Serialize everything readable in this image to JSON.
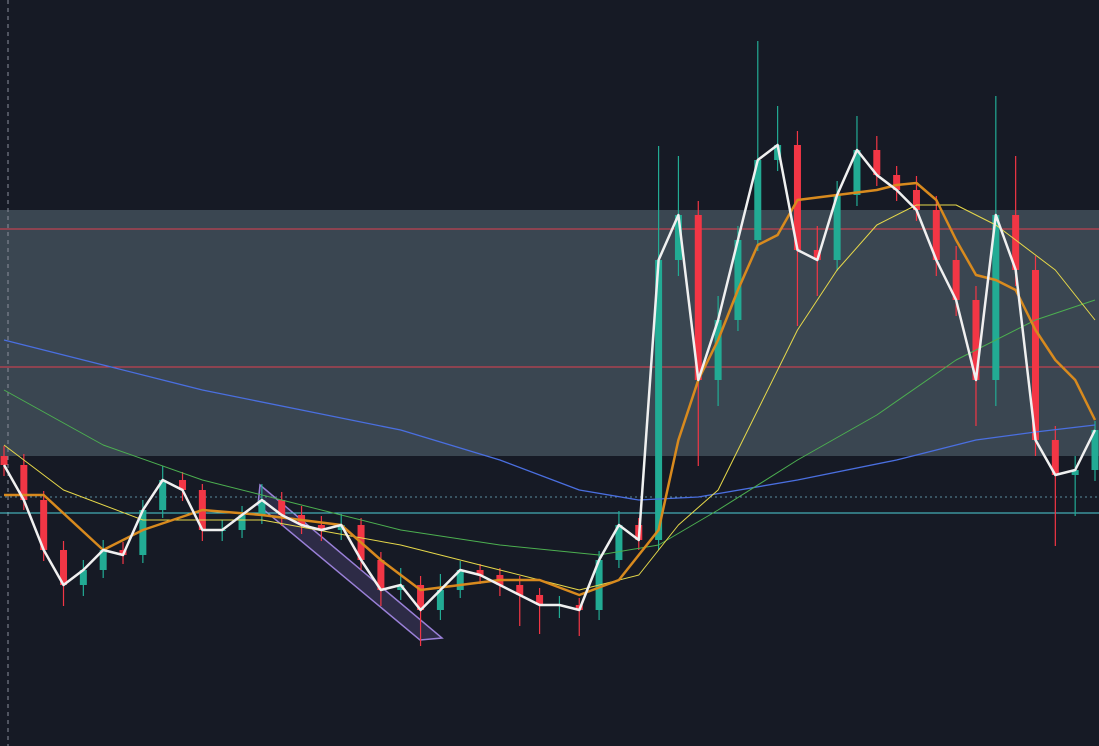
{
  "chart_data": {
    "type": "candlestick",
    "xlim": [
      0,
      55
    ],
    "ylim": [
      0,
      746
    ],
    "up_color": "#22ab94",
    "down_color": "#f23645",
    "open": [
      290,
      281,
      246,
      196,
      161,
      176,
      196,
      191,
      236,
      266,
      256,
      216,
      216,
      231,
      246,
      231,
      221,
      216,
      221,
      186,
      156,
      161,
      136,
      156,
      176,
      171,
      161,
      151,
      141,
      141,
      136,
      186,
      221,
      206,
      486,
      531,
      366,
      426,
      506,
      586,
      601,
      496,
      486,
      551,
      596,
      571,
      556,
      536,
      486,
      446,
      366,
      531,
      476,
      306,
      271,
      276
    ],
    "high": [
      300,
      292,
      255,
      205,
      186,
      206,
      204,
      246,
      280,
      274,
      262,
      226,
      240,
      262,
      254,
      240,
      230,
      232,
      228,
      194,
      178,
      170,
      172,
      185,
      182,
      178,
      170,
      158,
      150,
      148,
      195,
      235,
      228,
      600,
      590,
      545,
      450,
      520,
      705,
      640,
      615,
      520,
      565,
      630,
      610,
      580,
      570,
      550,
      500,
      460,
      650,
      590,
      490,
      320,
      290,
      325
    ],
    "low": [
      270,
      236,
      185,
      140,
      150,
      168,
      182,
      183,
      228,
      245,
      205,
      205,
      208,
      222,
      220,
      212,
      205,
      206,
      176,
      140,
      146,
      100,
      126,
      148,
      162,
      150,
      120,
      112,
      128,
      110,
      126,
      178,
      196,
      196,
      470,
      280,
      340,
      415,
      495,
      575,
      420,
      450,
      475,
      540,
      560,
      545,
      525,
      470,
      430,
      320,
      340,
      460,
      290,
      200,
      230,
      265
    ],
    "close": [
      281,
      246,
      196,
      161,
      176,
      196,
      191,
      236,
      266,
      256,
      216,
      216,
      231,
      246,
      231,
      221,
      216,
      221,
      186,
      156,
      161,
      136,
      156,
      176,
      171,
      161,
      151,
      141,
      141,
      136,
      186,
      221,
      206,
      486,
      531,
      366,
      426,
      506,
      586,
      601,
      496,
      486,
      551,
      596,
      571,
      556,
      536,
      486,
      446,
      366,
      531,
      476,
      306,
      271,
      276,
      316
    ],
    "zone": [
      290,
      536
    ],
    "zone_color": "#3a4651",
    "levels": [
      {
        "value": 517,
        "color": "#e0404f"
      },
      {
        "value": 379,
        "color": "#e0404f"
      },
      {
        "value": 249,
        "color": "#5a8fa0"
      },
      {
        "value": 233,
        "color": "#4fd0d8"
      }
    ],
    "series": [
      {
        "color": "#4a6fe0",
        "width": 1.3,
        "x": [
          0,
          5,
          10,
          15,
          20,
          25,
          29,
          32,
          35,
          40,
          45,
          49,
          52,
          55
        ],
        "values": [
          406,
          381,
          356,
          336,
          316,
          286,
          256,
          246,
          249,
          266,
          286,
          306,
          314,
          321
        ]
      },
      {
        "color": "#4caf50",
        "width": 1,
        "x": [
          0,
          5,
          10,
          15,
          20,
          25,
          30,
          33,
          36,
          40,
          44,
          48,
          52,
          55
        ],
        "values": [
          356,
          301,
          266,
          241,
          216,
          201,
          191,
          201,
          236,
          286,
          331,
          386,
          426,
          446
        ]
      },
      {
        "color": "#e6d84a",
        "width": 1,
        "x": [
          0,
          3,
          7,
          13,
          20,
          25,
          29,
          32,
          34,
          36,
          38,
          40,
          42,
          44,
          46,
          48,
          50,
          53,
          55
        ],
        "values": [
          301,
          256,
          226,
          226,
          201,
          176,
          156,
          171,
          221,
          256,
          336,
          416,
          476,
          521,
          541,
          541,
          521,
          476,
          426
        ]
      },
      {
        "color": "#d88a1e",
        "width": 2.5,
        "x": [
          0,
          2,
          5,
          7,
          10,
          13,
          15,
          17,
          19,
          21,
          23,
          25,
          27,
          29,
          31,
          33,
          34,
          35,
          36,
          37,
          38,
          39,
          40,
          42,
          44,
          45,
          46,
          47,
          48,
          49,
          50,
          51,
          52,
          53,
          54,
          55
        ],
        "values": [
          251,
          251,
          196,
          216,
          236,
          231,
          226,
          221,
          186,
          156,
          161,
          166,
          166,
          151,
          166,
          216,
          306,
          366,
          406,
          456,
          501,
          511,
          546,
          551,
          556,
          561,
          563,
          546,
          506,
          471,
          466,
          456,
          416,
          386,
          366,
          326
        ]
      },
      {
        "color": "#f0f0f0",
        "width": 2.5,
        "x": [
          0,
          1,
          2,
          3,
          4,
          5,
          6,
          7,
          8,
          9,
          10,
          11,
          12,
          13,
          14,
          15,
          16,
          17,
          18,
          19,
          20,
          21,
          22,
          23,
          24,
          25,
          26,
          27,
          28,
          29,
          30,
          31,
          32,
          33,
          34,
          35,
          36,
          37,
          38,
          39,
          40,
          41,
          42,
          43,
          44,
          45,
          46,
          47,
          48,
          49,
          50,
          51,
          52,
          53,
          54,
          55
        ],
        "values": [
          281,
          246,
          196,
          161,
          176,
          196,
          191,
          236,
          266,
          256,
          216,
          216,
          231,
          246,
          231,
          221,
          216,
          221,
          186,
          156,
          161,
          136,
          156,
          176,
          171,
          161,
          151,
          141,
          141,
          136,
          186,
          221,
          206,
          486,
          531,
          366,
          426,
          506,
          586,
          601,
          496,
          486,
          551,
          596,
          571,
          556,
          536,
          486,
          446,
          366,
          531,
          476,
          306,
          271,
          276,
          316
        ]
      }
    ]
  }
}
